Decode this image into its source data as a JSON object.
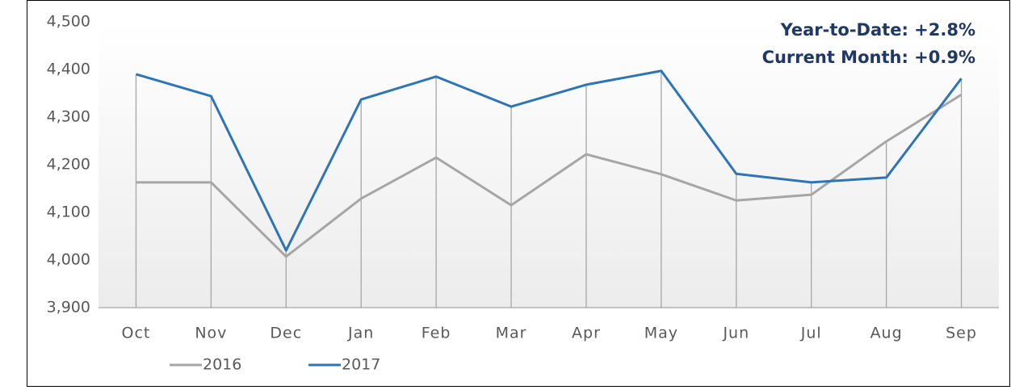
{
  "chart_data": {
    "type": "line",
    "annotations": [
      "Year-to-Date:  +2.8%",
      "Current Month:  +0.9%"
    ],
    "categories": [
      "Oct",
      "Nov",
      "Dec",
      "Jan",
      "Feb",
      "Mar",
      "Apr",
      "May",
      "Jun",
      "Jul",
      "Aug",
      "Sep"
    ],
    "series": [
      {
        "name": "2016",
        "color": "#a6a6a6",
        "values": [
          4163,
          4163,
          4007,
          4129,
          4215,
          4115,
          4222,
          4180,
          4125,
          4137,
          4249,
          4347
        ]
      },
      {
        "name": "2017",
        "color": "#2e75b6",
        "values": [
          4390,
          4344,
          4020,
          4337,
          4385,
          4322,
          4368,
          4397,
          4181,
          4163,
          4173,
          4381
        ]
      }
    ],
    "ylim": [
      3900,
      4500
    ],
    "yticks": [
      {
        "value": 3900,
        "label": "3,900"
      },
      {
        "value": 4000,
        "label": "4,000"
      },
      {
        "value": 4100,
        "label": "4,100"
      },
      {
        "value": 4200,
        "label": "4,200"
      },
      {
        "value": 4300,
        "label": "4,300"
      },
      {
        "value": 4400,
        "label": "4,400"
      },
      {
        "value": 4500,
        "label": "4,500"
      }
    ],
    "grid": false,
    "drop_lines": true,
    "legend": "bottom"
  }
}
